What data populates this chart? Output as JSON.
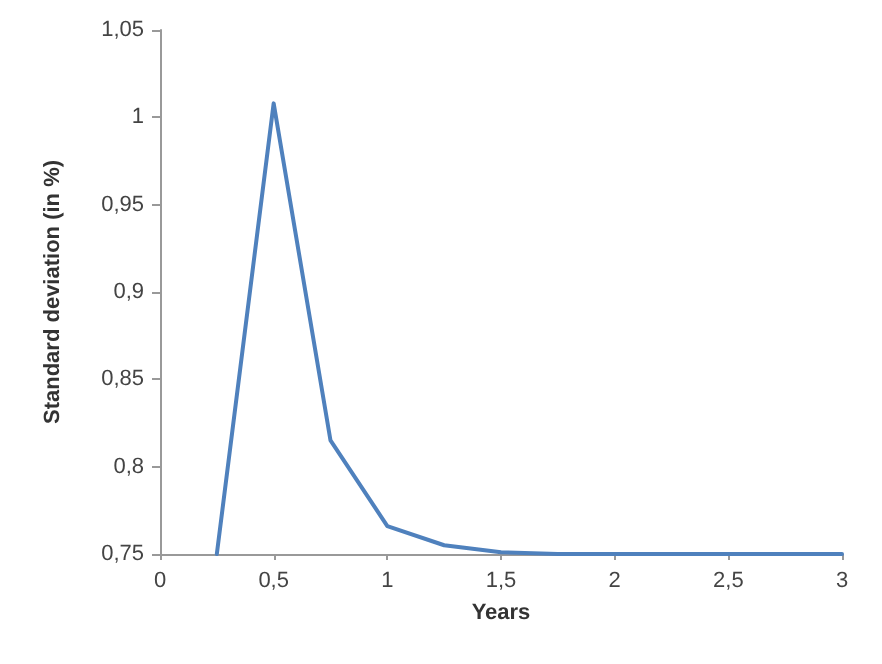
{
  "chart_data": {
    "type": "line",
    "xlabel": "Years",
    "ylabel": "Standard deviation (in %)",
    "x": [
      0.25,
      0.5,
      0.75,
      1,
      1.25,
      1.5,
      1.75,
      2,
      2.25,
      2.5,
      2.75,
      3
    ],
    "series": [
      {
        "color": "#4f81bd",
        "values": [
          0.75,
          1.008,
          0.815,
          0.766,
          0.755,
          0.751,
          0.75,
          0.75,
          0.75,
          0.75,
          0.75,
          0.75
        ]
      }
    ],
    "xlim": [
      0,
      3
    ],
    "xticks": [
      0,
      {
        "value": 0.5,
        "label": "0,5"
      },
      1,
      {
        "value": 1.5,
        "label": "1,5"
      },
      2,
      {
        "value": 2.5,
        "label": "2,5"
      },
      3
    ],
    "ylim": [
      0.75,
      1.05
    ],
    "yticks": [
      {
        "value": 0.75,
        "label": "0,75"
      },
      {
        "value": 0.8,
        "label": "0,8"
      },
      {
        "value": 0.85,
        "label": "0,85"
      },
      {
        "value": 0.9,
        "label": "0,9"
      },
      {
        "value": 0.95,
        "label": "0,95"
      },
      1,
      {
        "value": 1.05,
        "label": "1,05"
      }
    ],
    "grid": false,
    "marker": "none",
    "line_style": "solid"
  }
}
